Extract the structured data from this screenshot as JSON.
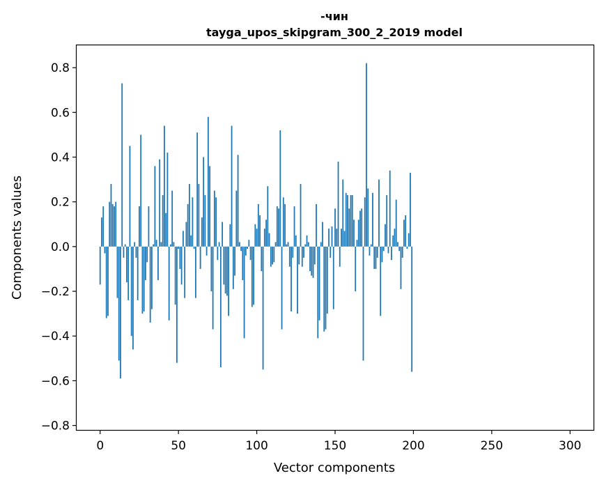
{
  "chart_data": {
    "type": "bar",
    "title": "-чин",
    "subtitle": "tayga_upos_skipgram_300_2_2019 model",
    "xlabel": "Vector components",
    "ylabel": "Components values",
    "xlim": [
      -15,
      315
    ],
    "ylim": [
      -0.82,
      0.9
    ],
    "grid": false,
    "legend": "none",
    "bar_color": "#1f77b4",
    "xticks": [
      0,
      50,
      100,
      150,
      200,
      250,
      300
    ],
    "xtick_labels": [
      "0",
      "50",
      "100",
      "150",
      "200",
      "250",
      "300"
    ],
    "yticks": [
      -0.8,
      -0.6,
      -0.4,
      -0.2,
      0.0,
      0.2,
      0.4,
      0.6,
      0.8
    ],
    "ytick_labels": [
      "−0.8",
      "−0.6",
      "−0.4",
      "−0.2",
      "0.0",
      "0.2",
      "0.4",
      "0.6",
      "0.8"
    ],
    "values": [
      -0.17,
      0.13,
      0.18,
      -0.03,
      -0.32,
      -0.31,
      0.2,
      0.28,
      0.19,
      0.18,
      0.2,
      -0.23,
      -0.51,
      -0.59,
      0.73,
      -0.05,
      0.01,
      -0.16,
      -0.24,
      0.45,
      -0.4,
      -0.46,
      0.02,
      -0.05,
      -0.24,
      0.18,
      0.5,
      -0.3,
      -0.29,
      -0.15,
      -0.07,
      0.18,
      -0.34,
      -0.28,
      0.01,
      0.36,
      0.03,
      -0.15,
      0.39,
      0.02,
      0.23,
      0.54,
      0.15,
      0.42,
      -0.33,
      0.01,
      0.25,
      0.02,
      -0.26,
      -0.52,
      -0.01,
      -0.1,
      -0.17,
      0.07,
      -0.23,
      0.11,
      0.19,
      0.28,
      0.05,
      0.22,
      -0.01,
      -0.23,
      0.51,
      0.28,
      -0.1,
      0.13,
      0.4,
      0.23,
      -0.04,
      0.58,
      0.36,
      -0.2,
      -0.37,
      0.25,
      0.22,
      -0.06,
      0.02,
      -0.54,
      0.11,
      -0.17,
      -0.21,
      -0.22,
      -0.31,
      0.1,
      0.54,
      -0.19,
      -0.13,
      0.25,
      0.41,
      0.02,
      -0.02,
      -0.15,
      -0.41,
      -0.04,
      -0.01,
      0.03,
      -0.06,
      -0.27,
      -0.26,
      0.1,
      0.08,
      0.19,
      0.14,
      -0.11,
      -0.55,
      0.08,
      0.12,
      0.27,
      0.06,
      -0.09,
      -0.08,
      -0.07,
      0.02,
      0.18,
      0.17,
      0.52,
      -0.37,
      0.22,
      0.19,
      0.01,
      0.02,
      -0.09,
      -0.29,
      -0.05,
      0.18,
      0.05,
      -0.3,
      -0.08,
      0.28,
      -0.09,
      -0.05,
      0.01,
      0.05,
      0.02,
      -0.11,
      -0.13,
      -0.14,
      -0.08,
      0.19,
      -0.41,
      -0.33,
      0.02,
      0.11,
      -0.38,
      -0.37,
      -0.3,
      0.08,
      -0.05,
      0.09,
      -0.28,
      0.17,
      0.08,
      0.38,
      -0.09,
      0.08,
      0.3,
      0.07,
      0.24,
      0.23,
      0.17,
      0.23,
      0.23,
      0.12,
      -0.2,
      0.03,
      0.12,
      0.16,
      0.17,
      -0.51,
      0.22,
      0.82,
      0.26,
      -0.04,
      0.01,
      0.24,
      -0.1,
      -0.1,
      -0.05,
      0.3,
      -0.31,
      -0.07,
      -0.02,
      0.1,
      0.23,
      -0.03,
      0.34,
      -0.06,
      0.05,
      0.08,
      0.21,
      0.02,
      -0.02,
      -0.19,
      -0.05,
      0.12,
      0.14,
      -0.01,
      0.06,
      0.33,
      -0.56
    ]
  }
}
